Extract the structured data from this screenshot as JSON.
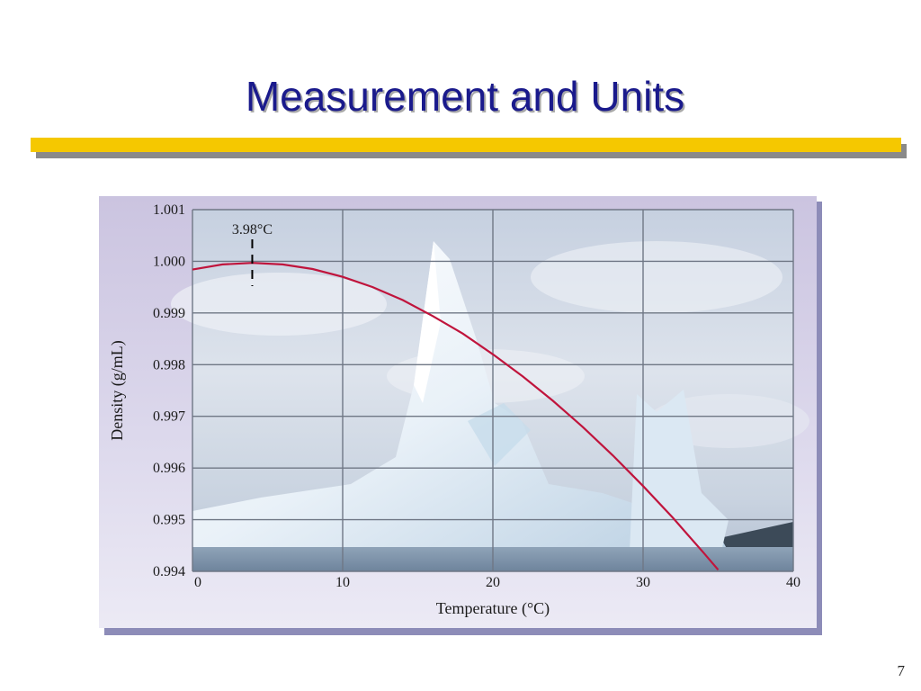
{
  "slide": {
    "title": "Measurement and Units",
    "page_number": "7"
  },
  "colors": {
    "title_text": "#1a1a8c",
    "title_bar": "#f5c800",
    "curve": "#c0143c",
    "grid": "#6f7785"
  },
  "chart_data": {
    "type": "line",
    "title": "",
    "xlabel": "Temperature (°C)",
    "ylabel": "Density (g/mL)",
    "xlim": [
      0,
      40
    ],
    "ylim": [
      0.994,
      1.001
    ],
    "x_ticks": [
      "0",
      "10",
      "20",
      "30",
      "40"
    ],
    "y_ticks": [
      "0.994",
      "0.995",
      "0.996",
      "0.997",
      "0.998",
      "0.999",
      "1.000",
      "1.001"
    ],
    "grid": true,
    "background": "photograph of an iceberg in the sea",
    "series": [
      {
        "x": [
          0,
          2,
          3.98,
          6,
          8,
          10,
          12,
          14,
          16,
          18,
          20,
          22,
          24,
          26,
          28,
          30,
          32,
          34,
          35
        ],
        "y": [
          0.99984,
          0.99994,
          0.99997,
          0.99994,
          0.99985,
          0.9997,
          0.9995,
          0.99925,
          0.99894,
          0.9986,
          0.9982,
          0.99777,
          0.9973,
          0.99679,
          0.99624,
          0.99565,
          0.99503,
          0.99437,
          0.99403
        ]
      }
    ],
    "annotations": [
      {
        "text": "3.98°C",
        "x": 3.98
      }
    ]
  }
}
